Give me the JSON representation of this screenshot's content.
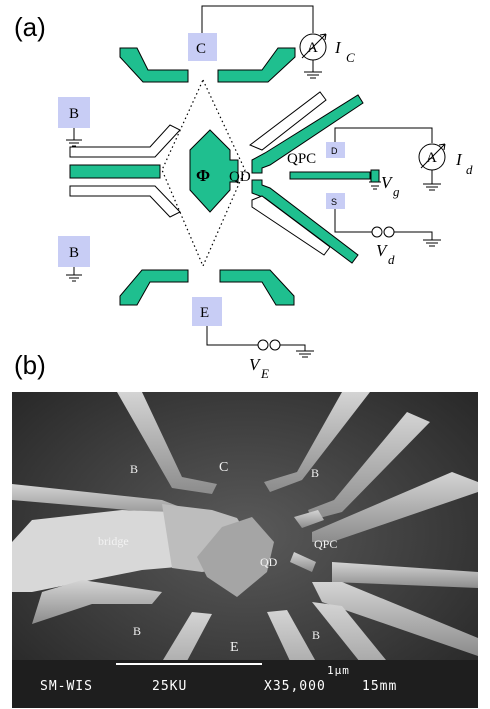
{
  "panels": {
    "a": "(a)",
    "b": "(b)"
  },
  "diagram": {
    "gate_c": "C",
    "gate_b_top": "B",
    "gate_b_bottom": "B",
    "gate_e": "E",
    "gate_d": "D",
    "gate_s": "S",
    "phi": "Φ",
    "qd": "QD",
    "qpc": "QPC",
    "ammeter": "A",
    "i_c": "I",
    "i_c_sub": "C",
    "i_d": "I",
    "i_d_sub": "d",
    "v_g": "V",
    "v_g_sub": "g",
    "v_d": "V",
    "v_d_sub": "d",
    "v_e": "V",
    "v_e_sub": "E"
  },
  "sem": {
    "labels": {
      "b_tl": "B",
      "b_tr": "B",
      "b_bl": "B",
      "b_br": "B",
      "c": "C",
      "e": "E",
      "bridge": "bridge",
      "qd": "QD",
      "qpc": "QPC"
    },
    "databar": {
      "instrument": "SM-WIS",
      "voltage": "25KU",
      "magnification": "X35,000",
      "working_distance": "15mm",
      "scale": "1μm"
    }
  }
}
